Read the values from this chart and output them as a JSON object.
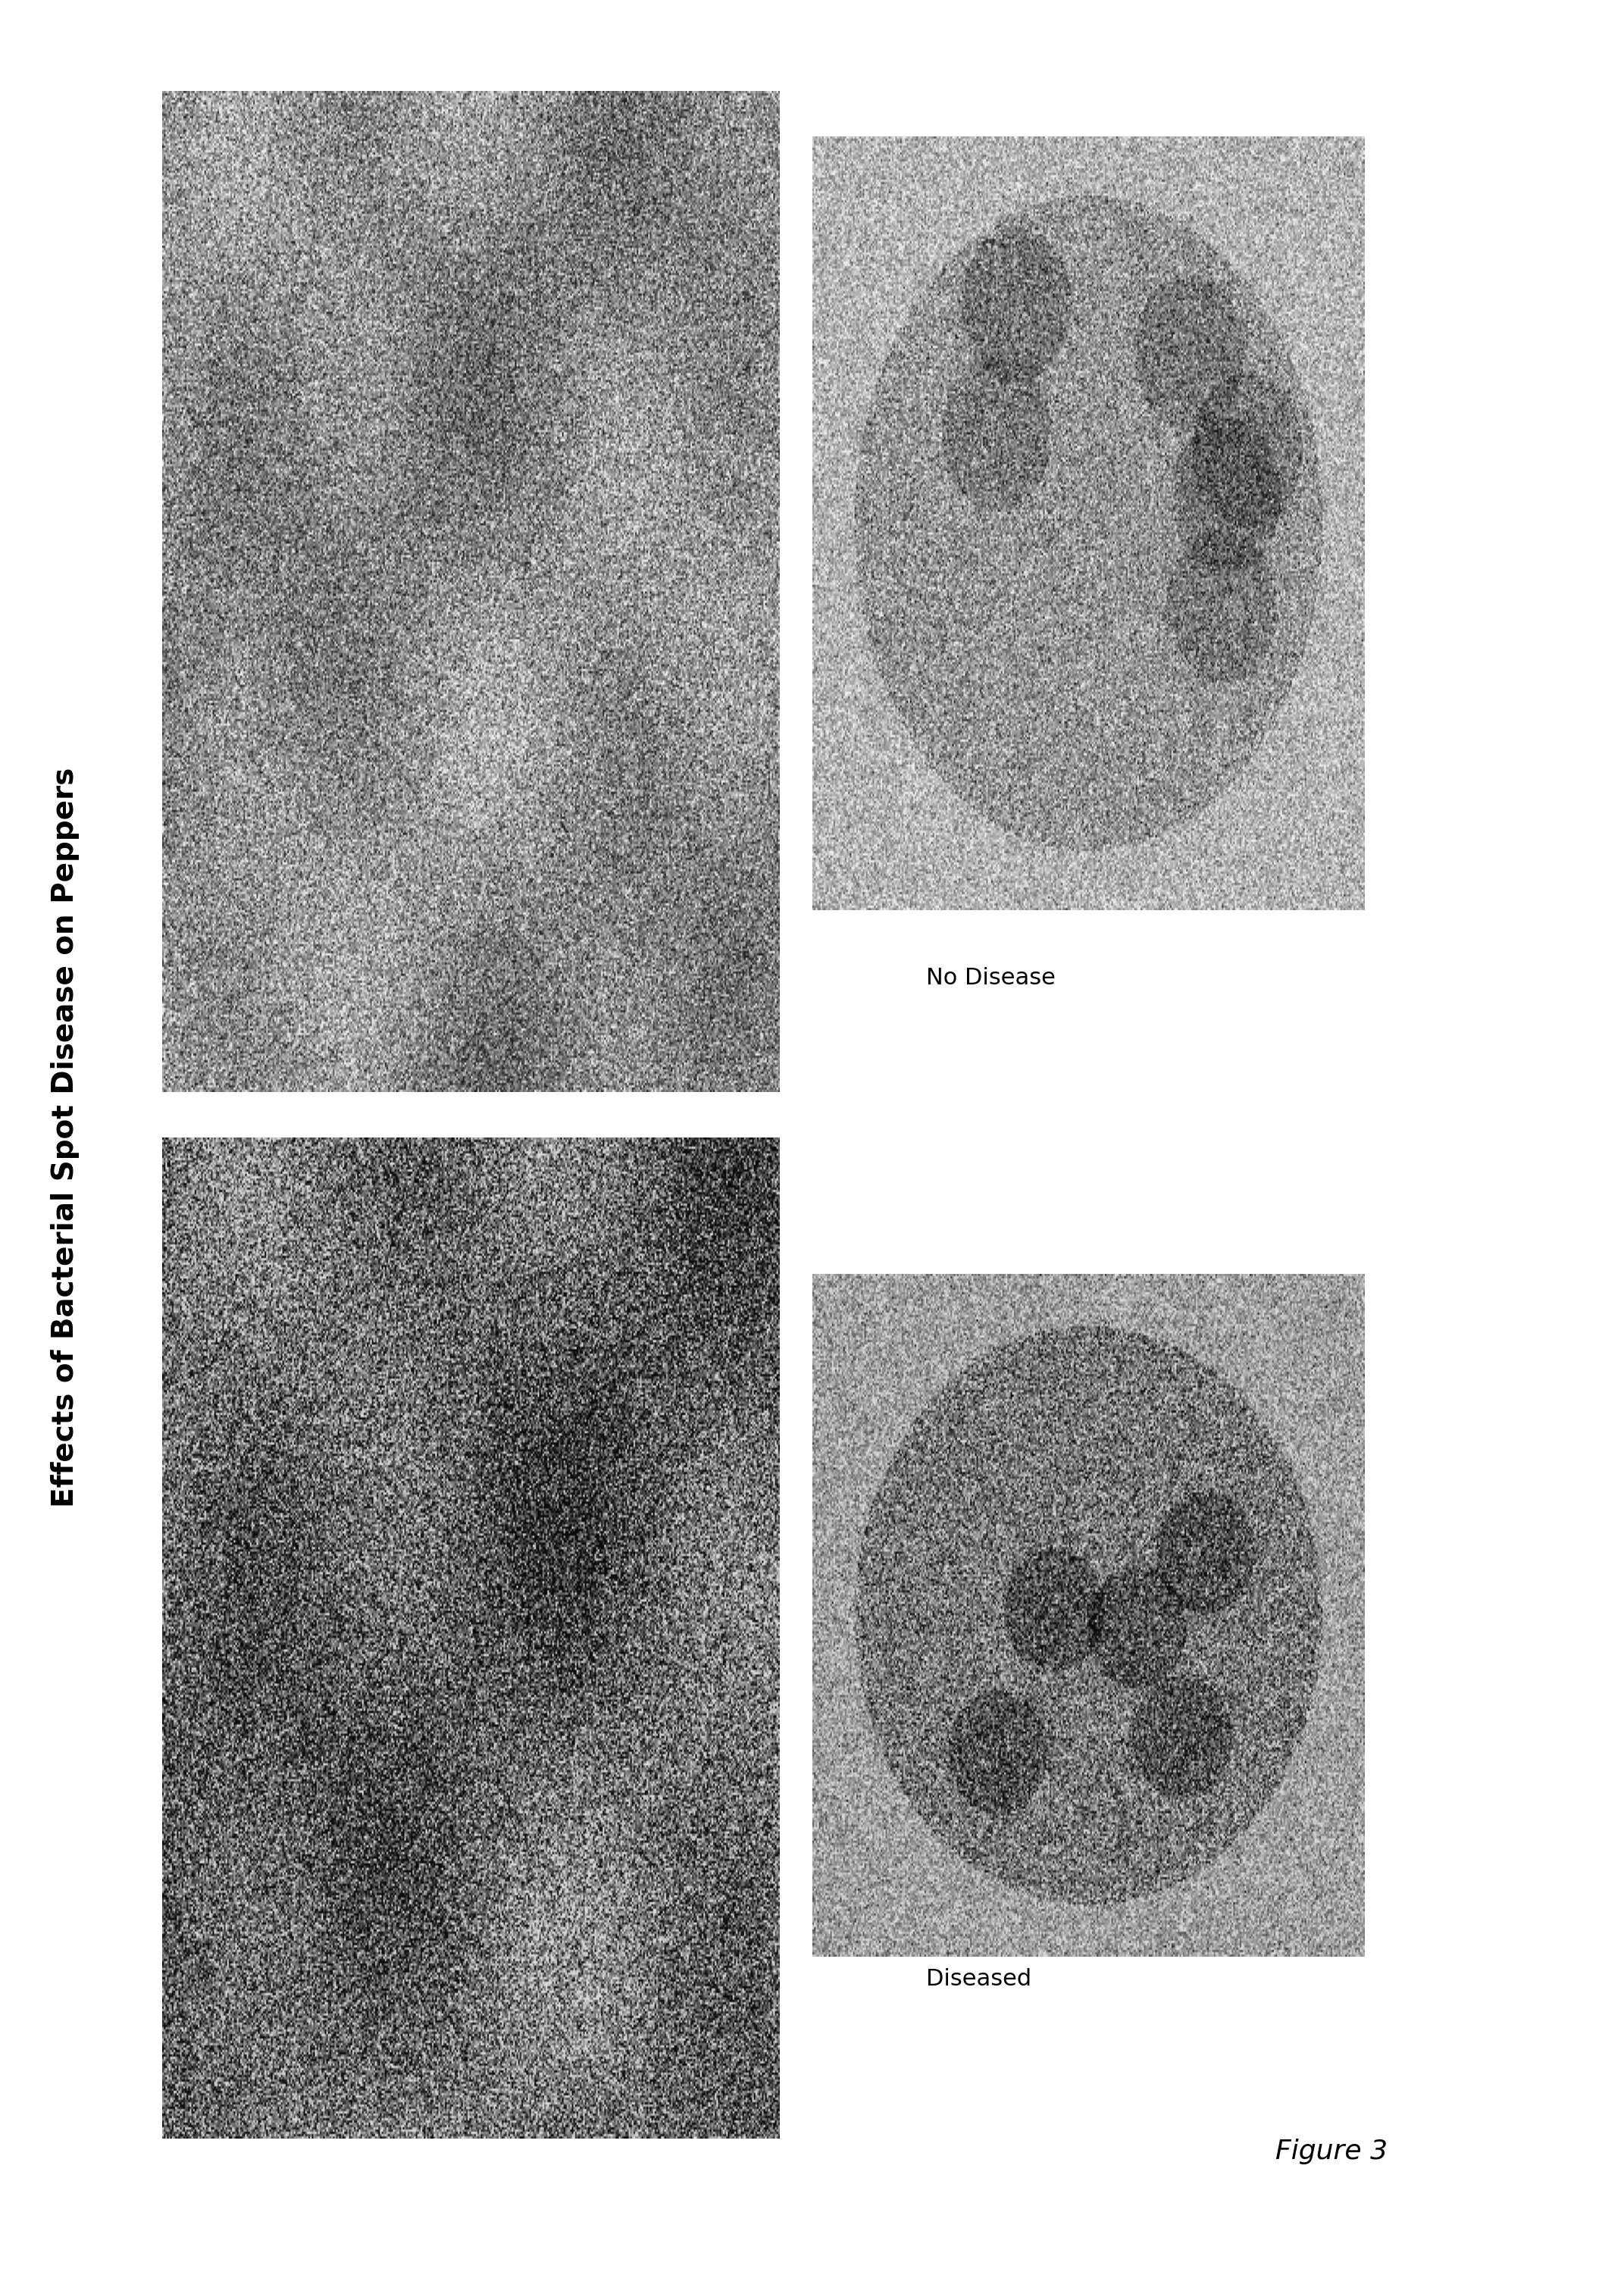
{
  "title": "Effects of Bacterial Spot Disease on Peppers",
  "label_no_disease": "No Disease",
  "label_diseased": "Diseased",
  "figure_label": "Figure 3",
  "bg_color": "#ffffff",
  "title_fontsize": 28,
  "label_fontsize": 22,
  "figure_label_fontsize": 26,
  "title_color": "#000000",
  "label_color": "#000000"
}
